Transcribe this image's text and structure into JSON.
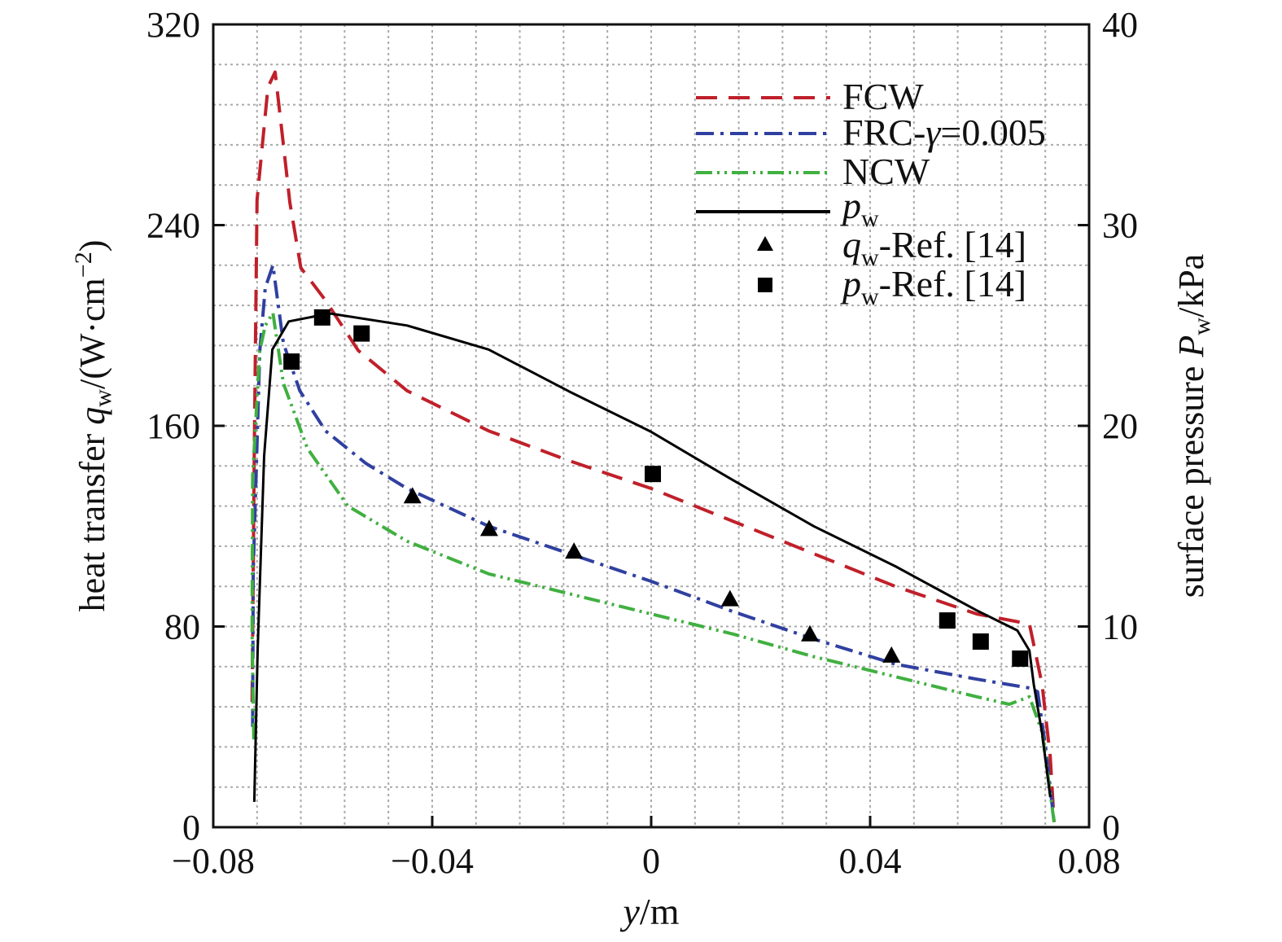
{
  "chart_data": {
    "type": "line",
    "xlabel": {
      "var": "y",
      "unit": "/m"
    },
    "ylabel_left": {
      "prefix": "heat transfer ",
      "var": "q",
      "sub": "w",
      "unit": "/(W·cm",
      "sup": "−2",
      "close": ")"
    },
    "ylabel_right": {
      "prefix": "surface pressure ",
      "var": "P",
      "sub": "w",
      "unit": "/kPa"
    },
    "xlim": [
      -0.08,
      0.08
    ],
    "ylim_left": [
      0,
      320
    ],
    "ylim_right": [
      0,
      40
    ],
    "x_ticks": [
      "−0.08",
      "−0.04",
      "0",
      "0.04",
      "0.08"
    ],
    "x_tick_values": [
      -0.08,
      -0.04,
      0,
      0.04,
      0.08
    ],
    "y_left_ticks": [
      "0",
      "80",
      "160",
      "240",
      "320"
    ],
    "y_left_tick_values": [
      0,
      80,
      160,
      240,
      320
    ],
    "y_right_ticks": [
      "0",
      "10",
      "20",
      "30",
      "40"
    ],
    "y_right_tick_values": [
      0,
      10,
      20,
      30,
      40
    ],
    "grid": true,
    "legend_position": "top-right",
    "series": [
      {
        "name": "FCW",
        "axis": "left",
        "style": "dashed",
        "color": "#c0202a",
        "x": [
          -0.0729,
          -0.0725,
          -0.072,
          -0.07,
          -0.0687,
          -0.0675,
          -0.066,
          -0.064,
          -0.0595,
          -0.0535,
          -0.0446,
          -0.0297,
          -0.0149,
          0,
          0.0149,
          0.0297,
          0.0446,
          0.0595,
          0.0691,
          0.0714,
          0.0729,
          0.0736
        ],
        "y": [
          50,
          150,
          250,
          295,
          301,
          278,
          249,
          223,
          210,
          190,
          174,
          158,
          146,
          135,
          122,
          109,
          96,
          85,
          81,
          57,
          28,
          2
        ]
      },
      {
        "name": "FRC-γ=0.005",
        "name_parts": {
          "a": "FRC-",
          "b": "γ",
          "c": "=0.005"
        },
        "axis": "left",
        "style": "dashdot",
        "color": "#3040a0",
        "x": [
          -0.0728,
          -0.0727,
          -0.0715,
          -0.0705,
          -0.0691,
          -0.0672,
          -0.0642,
          -0.0595,
          -0.0521,
          -0.0446,
          -0.0297,
          -0.0149,
          0,
          0.0149,
          0.0297,
          0.0446,
          0.0595,
          0.0691,
          0.0706,
          0.0721,
          0.0736
        ],
        "y": [
          40,
          102,
          190,
          215,
          224,
          193,
          174,
          158,
          145,
          135,
          120,
          109,
          98,
          86,
          75,
          65,
          59,
          55.5,
          54,
          31,
          2
        ]
      },
      {
        "name": "NCW",
        "axis": "left",
        "style": "dashdotdot",
        "color": "#40b040",
        "x": [
          -0.0726,
          -0.0729,
          -0.0728,
          -0.0715,
          -0.0705,
          -0.0691,
          -0.0672,
          -0.0628,
          -0.0554,
          -0.0446,
          -0.0297,
          -0.0149,
          0,
          0.0149,
          0.0297,
          0.0446,
          0.0595,
          0.0654,
          0.0691,
          0.0714,
          0.0736
        ],
        "y": [
          35,
          77,
          140,
          190,
          200,
          205,
          177,
          151,
          128,
          114,
          101,
          93,
          85,
          77,
          68,
          60,
          52,
          49,
          52,
          38,
          2
        ]
      },
      {
        "name": "pw",
        "name_parts": {
          "a": "p",
          "b": "w"
        },
        "axis": "right",
        "style": "solid",
        "color": "#000000",
        "x": [
          -0.0725,
          -0.0719,
          -0.0707,
          -0.0692,
          -0.0662,
          -0.0587,
          -0.0446,
          -0.0297,
          -0.0149,
          0,
          0.0149,
          0.0297,
          0.0446,
          0.0595,
          0.0669,
          0.0691,
          0.0699,
          0.0714,
          0.0729
        ],
        "y": [
          1.26,
          8.8,
          18.5,
          23.8,
          25.2,
          25.6,
          25.0,
          23.8,
          21.7,
          19.7,
          17.3,
          15.0,
          13.0,
          10.8,
          9.8,
          8.8,
          7.1,
          4.7,
          1.5
        ]
      },
      {
        "name": "qw-Ref. [14]",
        "name_parts": {
          "a": "q",
          "b": "w",
          "c": "-Ref. [14]"
        },
        "axis": "left",
        "style": "triangle",
        "color": "#000000",
        "x": [
          -0.0436,
          -0.0296,
          -0.0141,
          0.0144,
          0.029,
          0.0439
        ],
        "y": [
          132,
          119,
          110,
          91,
          77,
          68.5
        ]
      },
      {
        "name": "pw-Ref. [14]",
        "name_parts": {
          "a": "p",
          "b": "w",
          "c": "-Ref. [14]"
        },
        "axis": "right",
        "style": "square",
        "color": "#000000",
        "x": [
          -0.0657,
          -0.0601,
          -0.0529,
          0.0003,
          0.0541,
          0.0602,
          0.0674
        ],
        "y": [
          23.2,
          25.4,
          24.6,
          17.6,
          10.3,
          9.25,
          8.4
        ]
      }
    ]
  }
}
